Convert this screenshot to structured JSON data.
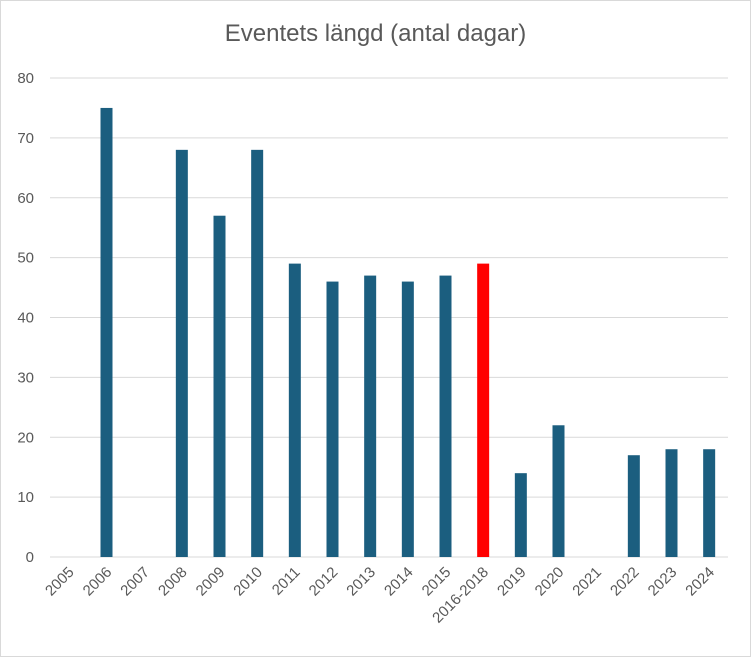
{
  "chart_data": {
    "type": "bar",
    "title": "Eventets längd (antal dagar)",
    "xlabel": "",
    "ylabel": "",
    "ylim": [
      0,
      80
    ],
    "yticks": [
      0,
      10,
      20,
      30,
      40,
      50,
      60,
      70,
      80
    ],
    "grid": true,
    "categories": [
      "2005",
      "2006",
      "2007",
      "2008",
      "2009",
      "2010",
      "2011",
      "2012",
      "2013",
      "2014",
      "2015",
      "2016-2018",
      "2019",
      "2020",
      "2021",
      "2022",
      "2023",
      "2024"
    ],
    "values": [
      0,
      75,
      0,
      68,
      57,
      68,
      49,
      46,
      47,
      46,
      47,
      49,
      14,
      22,
      0,
      17,
      18,
      18
    ],
    "colors": {
      "default": "#1b5e7f",
      "highlight": "#ff0000"
    },
    "highlight_category": "2016-2018"
  }
}
